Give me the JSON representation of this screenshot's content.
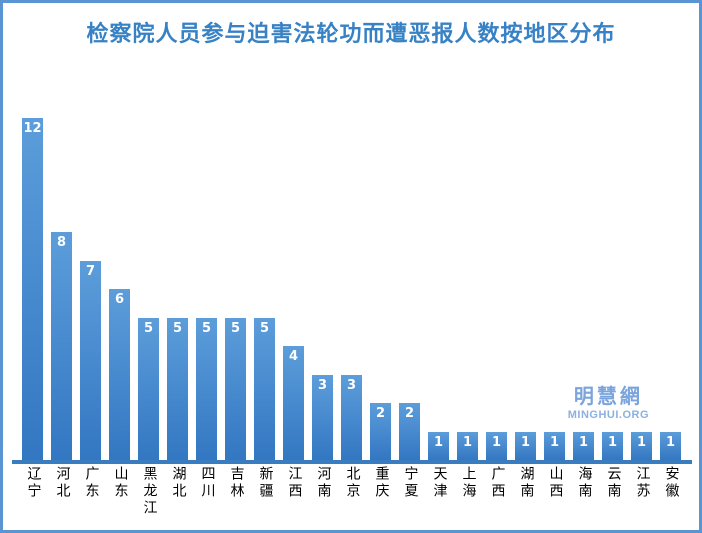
{
  "title": "检察院人员参与迫害法轮功而遭恶报人数按地区分布",
  "chart_data": {
    "type": "bar",
    "title": "检察院人员参与迫害法轮功而遭恶报人数按地区分布",
    "categories": [
      "辽宁",
      "河北",
      "广东",
      "山东",
      "黑龙江",
      "湖北",
      "四川",
      "吉林",
      "新疆",
      "江西",
      "河南",
      "北京",
      "重庆",
      "宁夏",
      "天津",
      "上海",
      "广西",
      "湖南",
      "山西",
      "海南",
      "云南",
      "江苏",
      "安徽"
    ],
    "values": [
      12,
      8,
      7,
      6,
      5,
      5,
      5,
      5,
      5,
      4,
      3,
      3,
      2,
      2,
      1,
      1,
      1,
      1,
      1,
      1,
      1,
      1,
      1
    ],
    "xlabel": "",
    "ylabel": "",
    "ylim": [
      0,
      12
    ],
    "grid": false,
    "legend": "none",
    "value_labels": true
  },
  "watermark": {
    "cn": "明慧網",
    "en": "MINGHUI.ORG"
  },
  "colors": {
    "border": "#5b94d2",
    "title": "#3781c5",
    "bar-top": "#5c9dda",
    "bar-bottom": "#3377c2",
    "value-label": "#ffffff",
    "axis": "#3a7cc0",
    "category-label": "#000000",
    "watermark-cn": "#7ca4dc",
    "watermark-en": "#8cb0e0"
  }
}
